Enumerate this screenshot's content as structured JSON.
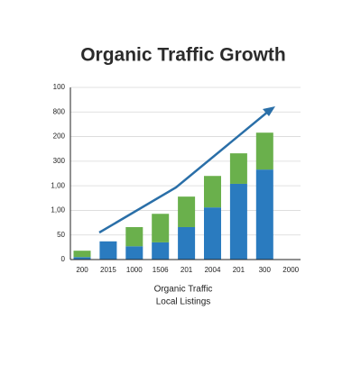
{
  "chart_data": {
    "type": "stacked_bar",
    "title": "Organic Traffic Growth",
    "categories": [
      "200",
      "2015",
      "1000",
      "1506",
      "201",
      "2004",
      "201",
      "300",
      "2000"
    ],
    "series": [
      {
        "name": "Organic Traffic",
        "color": "#2a7bbf",
        "values": [
          5,
          37,
          27,
          35,
          66,
          106,
          154,
          183,
          null
        ]
      },
      {
        "name": "Local Listings",
        "color": "#6ab04c",
        "values": [
          13,
          0,
          39,
          58,
          62,
          64,
          62,
          75,
          null
        ]
      }
    ],
    "ylim": [
      0,
      350
    ],
    "yticks": [
      0,
      50,
      {
        "value": 100,
        "label": "1,00"
      },
      {
        "value": 150,
        "label": "1,00"
      },
      {
        "value": 200,
        "label": "300"
      },
      {
        "value": 250,
        "label": "200"
      },
      {
        "value": 300,
        "label": "800"
      },
      {
        "value": 350,
        "label": "100"
      }
    ],
    "grid": true
  }
}
